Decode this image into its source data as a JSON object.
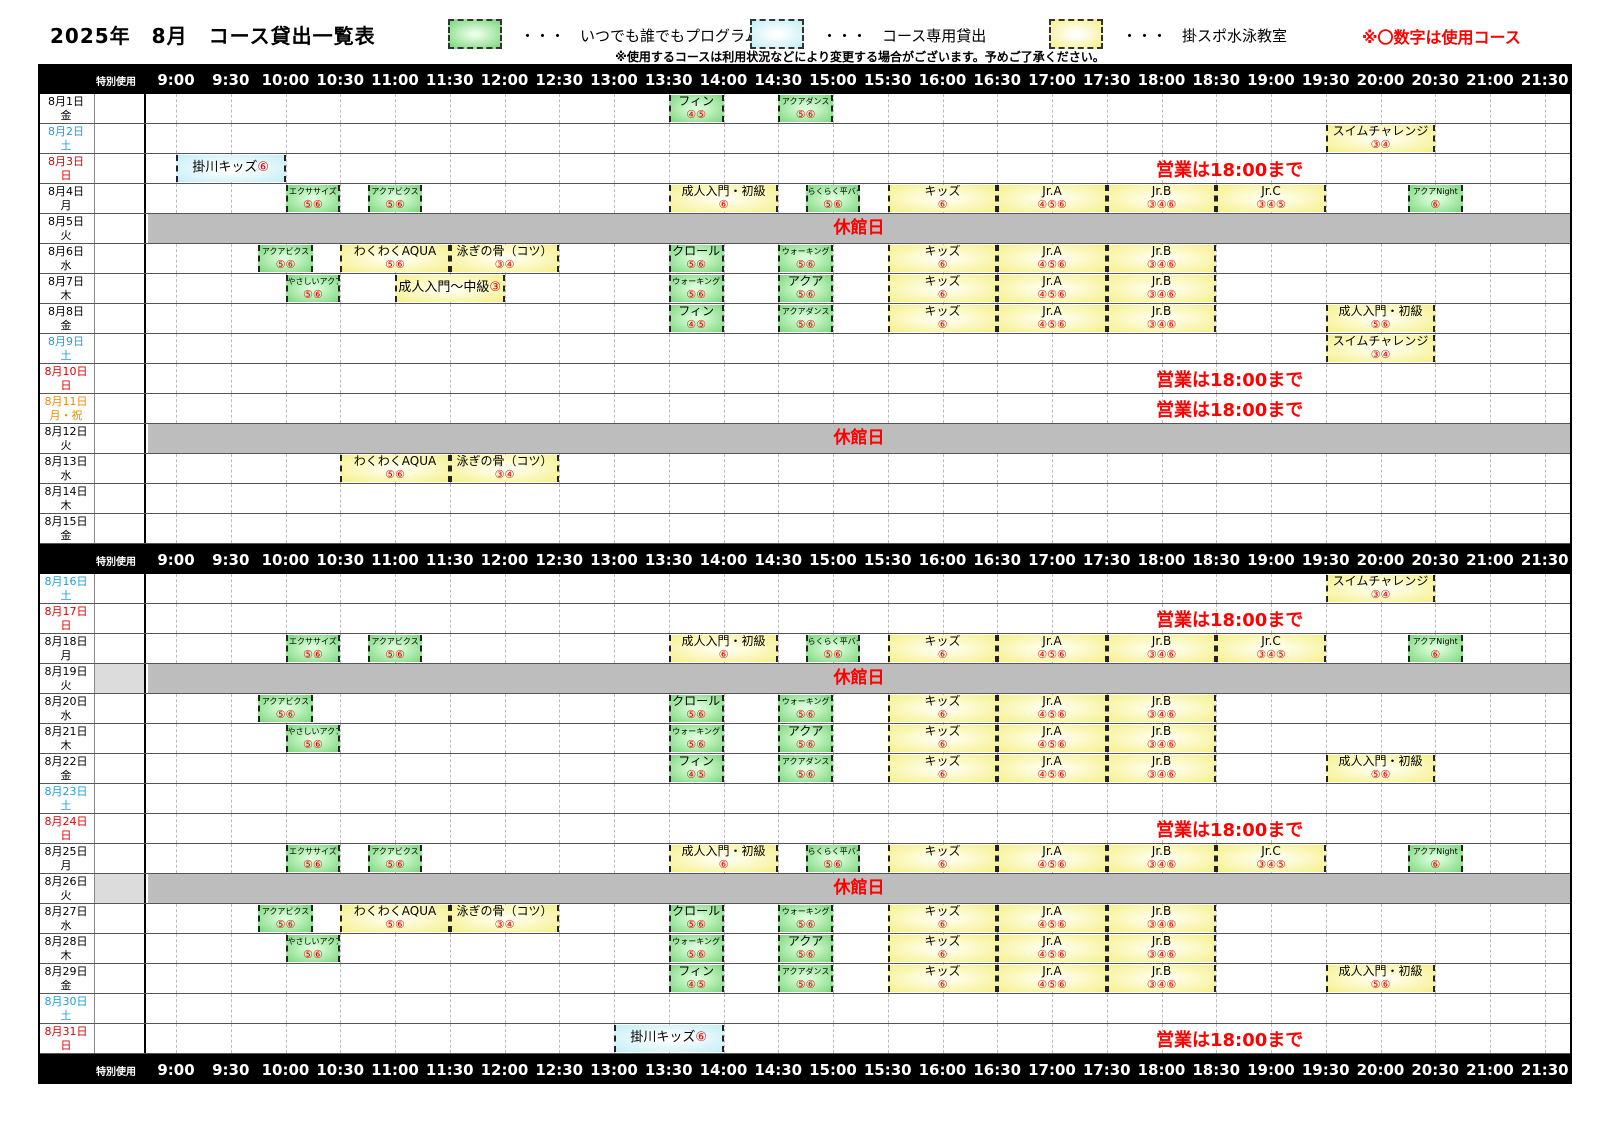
{
  "header": {
    "title": "2025年　8月　コース貸出一覧表",
    "legend": [
      {
        "type": "green",
        "text": "・・・　いつでも誰でもプログラム"
      },
      {
        "type": "blue",
        "text": "・・・　コース専用貸出"
      },
      {
        "type": "yellow",
        "text": "・・・　掛スポ水泳教室"
      }
    ],
    "red_notice": "※〇数字は使用コース",
    "subnote": "※使用するコースは利用状況などにより変更する場合がございます。予めご了承ください。"
  },
  "time_header": {
    "special_label": "特別使用",
    "times": [
      "9:00",
      "9:30",
      "10:00",
      "10:30",
      "11:00",
      "11:30",
      "12:00",
      "12:30",
      "13:00",
      "13:30",
      "14:00",
      "14:30",
      "15:00",
      "15:30",
      "16:00",
      "16:30",
      "17:00",
      "17:30",
      "18:00",
      "18:30",
      "19:00",
      "19:30",
      "20:00",
      "20:30",
      "21:00",
      "21:30"
    ]
  },
  "labels": {
    "closed": "休館日",
    "until18": "営業は18:00まで"
  },
  "days": [
    {
      "d1": "8月1日",
      "d2": "金",
      "color": "#000000",
      "blocks": [
        {
          "s": "13:30",
          "e": "14:00",
          "t": "フィン",
          "c": "④⑤",
          "k": "green"
        },
        {
          "s": "14:30",
          "e": "15:00",
          "t": "アクアダンス",
          "c": "⑤⑥",
          "k": "green",
          "small": true
        }
      ]
    },
    {
      "d1": "8月2日",
      "d2": "土",
      "color": "#1ea0d8",
      "blocks": [
        {
          "s": "19:30",
          "e": "20:30",
          "t": "スイムチャレンジ",
          "c": "③④",
          "k": "yellow"
        }
      ]
    },
    {
      "d1": "8月3日",
      "d2": "日",
      "color": "#e00000",
      "until18": true,
      "blocks": [
        {
          "s": "9:00",
          "e": "10:00",
          "t": "掛川キッズ",
          "c": "⑥",
          "k": "blue",
          "single": true
        }
      ]
    },
    {
      "d1": "8月4日",
      "d2": "月",
      "color": "#000000",
      "blocks": [
        {
          "s": "10:00",
          "e": "10:30",
          "t": "エクササイズ",
          "c": "⑤⑥",
          "k": "green",
          "small": true
        },
        {
          "s": "10:45",
          "e": "11:15",
          "t": "アクアビクス",
          "c": "⑤⑥",
          "k": "green",
          "small": true
        },
        {
          "s": "13:30",
          "e": "14:30",
          "t": "成人入門・初級",
          "c": "⑥",
          "k": "yellow"
        },
        {
          "s": "14:45",
          "e": "15:15",
          "t": "らくらく平バタ",
          "c": "⑤⑥",
          "k": "green",
          "small": true
        },
        {
          "s": "15:30",
          "e": "16:30",
          "t": "キッズ",
          "c": "⑥",
          "k": "yellow"
        },
        {
          "s": "16:30",
          "e": "17:30",
          "t": "Jr.A",
          "c": "④⑤⑥",
          "k": "yellow"
        },
        {
          "s": "17:30",
          "e": "18:30",
          "t": "Jr.B",
          "c": "③④⑥",
          "k": "yellow"
        },
        {
          "s": "18:30",
          "e": "19:30",
          "t": "Jr.C",
          "c": "③④⑤",
          "k": "yellow"
        },
        {
          "s": "20:15",
          "e": "20:45",
          "t": "アクアNight",
          "c": "⑥",
          "k": "green",
          "small": true
        }
      ]
    },
    {
      "d1": "8月5日",
      "d2": "火",
      "color": "#000000",
      "closed": true,
      "blocks": []
    },
    {
      "d1": "8月6日",
      "d2": "水",
      "color": "#000000",
      "blocks": [
        {
          "s": "9:45",
          "e": "10:15",
          "t": "アクアビクス",
          "c": "⑤⑥",
          "k": "green",
          "small": true
        },
        {
          "s": "10:30",
          "e": "11:30",
          "t": "わくわくAQUA",
          "c": "⑤⑥",
          "k": "yellow"
        },
        {
          "s": "11:30",
          "e": "12:30",
          "t": "泳ぎの骨（コツ）",
          "c": "③④",
          "k": "yellow"
        },
        {
          "s": "13:30",
          "e": "14:00",
          "t": "クロール",
          "c": "⑤⑥",
          "k": "green"
        },
        {
          "s": "14:30",
          "e": "15:00",
          "t": "ウォーキング",
          "c": "⑤⑥",
          "k": "green",
          "small": true
        },
        {
          "s": "15:30",
          "e": "16:30",
          "t": "キッズ",
          "c": "⑥",
          "k": "yellow"
        },
        {
          "s": "16:30",
          "e": "17:30",
          "t": "Jr.A",
          "c": "④⑤⑥",
          "k": "yellow"
        },
        {
          "s": "17:30",
          "e": "18:30",
          "t": "Jr.B",
          "c": "③④⑥",
          "k": "yellow"
        }
      ]
    },
    {
      "d1": "8月7日",
      "d2": "木",
      "color": "#000000",
      "blocks": [
        {
          "s": "10:00",
          "e": "10:30",
          "t": "やさしいアクア",
          "c": "⑤⑥",
          "k": "green",
          "small": true
        },
        {
          "s": "11:00",
          "e": "12:00",
          "t": "成人入門～中級",
          "c": "③",
          "k": "yellow",
          "single": true
        },
        {
          "s": "13:30",
          "e": "14:00",
          "t": "ウォーキング",
          "c": "⑤⑥",
          "k": "green",
          "small": true
        },
        {
          "s": "14:30",
          "e": "15:00",
          "t": "アクア",
          "c": "⑤⑥",
          "k": "green"
        },
        {
          "s": "15:30",
          "e": "16:30",
          "t": "キッズ",
          "c": "⑥",
          "k": "yellow"
        },
        {
          "s": "16:30",
          "e": "17:30",
          "t": "Jr.A",
          "c": "④⑤⑥",
          "k": "yellow"
        },
        {
          "s": "17:30",
          "e": "18:30",
          "t": "Jr.B",
          "c": "③④⑥",
          "k": "yellow"
        }
      ]
    },
    {
      "d1": "8月8日",
      "d2": "金",
      "color": "#000000",
      "blocks": [
        {
          "s": "13:30",
          "e": "14:00",
          "t": "フィン",
          "c": "④⑤",
          "k": "green"
        },
        {
          "s": "14:30",
          "e": "15:00",
          "t": "アクアダンス",
          "c": "⑤⑥",
          "k": "green",
          "small": true
        },
        {
          "s": "15:30",
          "e": "16:30",
          "t": "キッズ",
          "c": "⑥",
          "k": "yellow"
        },
        {
          "s": "16:30",
          "e": "17:30",
          "t": "Jr.A",
          "c": "④⑤⑥",
          "k": "yellow"
        },
        {
          "s": "17:30",
          "e": "18:30",
          "t": "Jr.B",
          "c": "③④⑥",
          "k": "yellow"
        },
        {
          "s": "19:30",
          "e": "20:30",
          "t": "成人入門・初級",
          "c": "⑤⑥",
          "k": "yellow"
        }
      ]
    },
    {
      "d1": "8月9日",
      "d2": "土",
      "color": "#1ea0d8",
      "blocks": [
        {
          "s": "19:30",
          "e": "20:30",
          "t": "スイムチャレンジ",
          "c": "③④",
          "k": "yellow"
        }
      ]
    },
    {
      "d1": "8月10日",
      "d2": "日",
      "color": "#e00000",
      "until18": true,
      "blocks": []
    },
    {
      "d1": "8月11日",
      "d2": "月・祝",
      "color": "#f08a00",
      "until18": true,
      "blocks": []
    },
    {
      "d1": "8月12日",
      "d2": "火",
      "color": "#000000",
      "closed": true,
      "blocks": []
    },
    {
      "d1": "8月13日",
      "d2": "水",
      "color": "#000000",
      "blocks": [
        {
          "s": "10:30",
          "e": "11:30",
          "t": "わくわくAQUA",
          "c": "⑤⑥",
          "k": "yellow"
        },
        {
          "s": "11:30",
          "e": "12:30",
          "t": "泳ぎの骨（コツ）",
          "c": "③④",
          "k": "yellow"
        }
      ]
    },
    {
      "d1": "8月14日",
      "d2": "木",
      "color": "#000000",
      "blocks": []
    },
    {
      "d1": "8月15日",
      "d2": "金",
      "color": "#000000",
      "blocks": []
    },
    {
      "header": true
    },
    {
      "d1": "8月16日",
      "d2": "土",
      "color": "#1ea0d8",
      "blocks": [
        {
          "s": "19:30",
          "e": "20:30",
          "t": "スイムチャレンジ",
          "c": "③④",
          "k": "yellow"
        }
      ]
    },
    {
      "d1": "8月17日",
      "d2": "日",
      "color": "#e00000",
      "until18": true,
      "blocks": []
    },
    {
      "d1": "8月18日",
      "d2": "月",
      "color": "#000000",
      "blocks": [
        {
          "s": "10:00",
          "e": "10:30",
          "t": "エクササイズ",
          "c": "⑤⑥",
          "k": "green",
          "small": true
        },
        {
          "s": "10:45",
          "e": "11:15",
          "t": "アクアビクス",
          "c": "⑤⑥",
          "k": "green",
          "small": true
        },
        {
          "s": "13:30",
          "e": "14:30",
          "t": "成人入門・初級",
          "c": "⑥",
          "k": "yellow"
        },
        {
          "s": "14:45",
          "e": "15:15",
          "t": "らくらく平バタ",
          "c": "⑤⑥",
          "k": "green",
          "small": true
        },
        {
          "s": "15:30",
          "e": "16:30",
          "t": "キッズ",
          "c": "⑥",
          "k": "yellow"
        },
        {
          "s": "16:30",
          "e": "17:30",
          "t": "Jr.A",
          "c": "④⑤⑥",
          "k": "yellow"
        },
        {
          "s": "17:30",
          "e": "18:30",
          "t": "Jr.B",
          "c": "③④⑥",
          "k": "yellow"
        },
        {
          "s": "18:30",
          "e": "19:30",
          "t": "Jr.C",
          "c": "③④⑤",
          "k": "yellow"
        },
        {
          "s": "20:15",
          "e": "20:45",
          "t": "アクアNight",
          "c": "⑥",
          "k": "green",
          "small": true
        }
      ]
    },
    {
      "d1": "8月19日",
      "d2": "火",
      "color": "#000000",
      "closed": true,
      "greysp": true,
      "blocks": []
    },
    {
      "d1": "8月20日",
      "d2": "水",
      "color": "#000000",
      "blocks": [
        {
          "s": "9:45",
          "e": "10:15",
          "t": "アクアビクス",
          "c": "⑤⑥",
          "k": "green",
          "small": true
        },
        {
          "s": "13:30",
          "e": "14:00",
          "t": "クロール",
          "c": "⑤⑥",
          "k": "green"
        },
        {
          "s": "14:30",
          "e": "15:00",
          "t": "ウォーキング",
          "c": "⑤⑥",
          "k": "green",
          "small": true
        },
        {
          "s": "15:30",
          "e": "16:30",
          "t": "キッズ",
          "c": "⑥",
          "k": "yellow"
        },
        {
          "s": "16:30",
          "e": "17:30",
          "t": "Jr.A",
          "c": "④⑤⑥",
          "k": "yellow"
        },
        {
          "s": "17:30",
          "e": "18:30",
          "t": "Jr.B",
          "c": "③④⑥",
          "k": "yellow"
        }
      ]
    },
    {
      "d1": "8月21日",
      "d2": "木",
      "color": "#000000",
      "blocks": [
        {
          "s": "10:00",
          "e": "10:30",
          "t": "やさしいアクア",
          "c": "⑤⑥",
          "k": "green",
          "small": true
        },
        {
          "s": "13:30",
          "e": "14:00",
          "t": "ウォーキング",
          "c": "⑤⑥",
          "k": "green",
          "small": true
        },
        {
          "s": "14:30",
          "e": "15:00",
          "t": "アクア",
          "c": "⑤⑥",
          "k": "green"
        },
        {
          "s": "15:30",
          "e": "16:30",
          "t": "キッズ",
          "c": "⑥",
          "k": "yellow"
        },
        {
          "s": "16:30",
          "e": "17:30",
          "t": "Jr.A",
          "c": "④⑤⑥",
          "k": "yellow"
        },
        {
          "s": "17:30",
          "e": "18:30",
          "t": "Jr.B",
          "c": "③④⑥",
          "k": "yellow"
        }
      ]
    },
    {
      "d1": "8月22日",
      "d2": "金",
      "color": "#000000",
      "blocks": [
        {
          "s": "13:30",
          "e": "14:00",
          "t": "フィン",
          "c": "④⑤",
          "k": "green"
        },
        {
          "s": "14:30",
          "e": "15:00",
          "t": "アクアダンス",
          "c": "⑤⑥",
          "k": "green",
          "small": true
        },
        {
          "s": "15:30",
          "e": "16:30",
          "t": "キッズ",
          "c": "⑥",
          "k": "yellow"
        },
        {
          "s": "16:30",
          "e": "17:30",
          "t": "Jr.A",
          "c": "④⑤⑥",
          "k": "yellow"
        },
        {
          "s": "17:30",
          "e": "18:30",
          "t": "Jr.B",
          "c": "③④⑥",
          "k": "yellow"
        },
        {
          "s": "19:30",
          "e": "20:30",
          "t": "成人入門・初級",
          "c": "⑤⑥",
          "k": "yellow"
        }
      ]
    },
    {
      "d1": "8月23日",
      "d2": "土",
      "color": "#1ea0d8",
      "blocks": []
    },
    {
      "d1": "8月24日",
      "d2": "日",
      "color": "#e00000",
      "until18": true,
      "blocks": []
    },
    {
      "d1": "8月25日",
      "d2": "月",
      "color": "#000000",
      "blocks": [
        {
          "s": "10:00",
          "e": "10:30",
          "t": "エクササイズ",
          "c": "⑤⑥",
          "k": "green",
          "small": true
        },
        {
          "s": "10:45",
          "e": "11:15",
          "t": "アクアビクス",
          "c": "⑤⑥",
          "k": "green",
          "small": true
        },
        {
          "s": "13:30",
          "e": "14:30",
          "t": "成人入門・初級",
          "c": "⑥",
          "k": "yellow"
        },
        {
          "s": "14:45",
          "e": "15:15",
          "t": "らくらく平バタ",
          "c": "⑤⑥",
          "k": "green",
          "small": true
        },
        {
          "s": "15:30",
          "e": "16:30",
          "t": "キッズ",
          "c": "⑥",
          "k": "yellow"
        },
        {
          "s": "16:30",
          "e": "17:30",
          "t": "Jr.A",
          "c": "④⑤⑥",
          "k": "yellow"
        },
        {
          "s": "17:30",
          "e": "18:30",
          "t": "Jr.B",
          "c": "③④⑥",
          "k": "yellow"
        },
        {
          "s": "18:30",
          "e": "19:30",
          "t": "Jr.C",
          "c": "③④⑤",
          "k": "yellow"
        },
        {
          "s": "20:15",
          "e": "20:45",
          "t": "アクアNight",
          "c": "⑥",
          "k": "green",
          "small": true
        }
      ]
    },
    {
      "d1": "8月26日",
      "d2": "火",
      "color": "#000000",
      "closed": true,
      "greysp": true,
      "blocks": []
    },
    {
      "d1": "8月27日",
      "d2": "水",
      "color": "#000000",
      "blocks": [
        {
          "s": "9:45",
          "e": "10:15",
          "t": "アクアビクス",
          "c": "⑤⑥",
          "k": "green",
          "small": true
        },
        {
          "s": "10:30",
          "e": "11:30",
          "t": "わくわくAQUA",
          "c": "⑤⑥",
          "k": "yellow"
        },
        {
          "s": "11:30",
          "e": "12:30",
          "t": "泳ぎの骨（コツ）",
          "c": "③④",
          "k": "yellow"
        },
        {
          "s": "13:30",
          "e": "14:00",
          "t": "クロール",
          "c": "⑤⑥",
          "k": "green"
        },
        {
          "s": "14:30",
          "e": "15:00",
          "t": "ウォーキング",
          "c": "⑤⑥",
          "k": "green",
          "small": true
        },
        {
          "s": "15:30",
          "e": "16:30",
          "t": "キッズ",
          "c": "⑥",
          "k": "yellow"
        },
        {
          "s": "16:30",
          "e": "17:30",
          "t": "Jr.A",
          "c": "④⑤⑥",
          "k": "yellow"
        },
        {
          "s": "17:30",
          "e": "18:30",
          "t": "Jr.B",
          "c": "③④⑥",
          "k": "yellow"
        }
      ]
    },
    {
      "d1": "8月28日",
      "d2": "木",
      "color": "#000000",
      "blocks": [
        {
          "s": "10:00",
          "e": "10:30",
          "t": "やさしいアクア",
          "c": "⑤⑥",
          "k": "green",
          "small": true
        },
        {
          "s": "13:30",
          "e": "14:00",
          "t": "ウォーキング",
          "c": "⑤⑥",
          "k": "green",
          "small": true
        },
        {
          "s": "14:30",
          "e": "15:00",
          "t": "アクア",
          "c": "⑤⑥",
          "k": "green"
        },
        {
          "s": "15:30",
          "e": "16:30",
          "t": "キッズ",
          "c": "⑥",
          "k": "yellow"
        },
        {
          "s": "16:30",
          "e": "17:30",
          "t": "Jr.A",
          "c": "④⑤⑥",
          "k": "yellow"
        },
        {
          "s": "17:30",
          "e": "18:30",
          "t": "Jr.B",
          "c": "③④⑥",
          "k": "yellow"
        }
      ]
    },
    {
      "d1": "8月29日",
      "d2": "金",
      "color": "#000000",
      "blocks": [
        {
          "s": "13:30",
          "e": "14:00",
          "t": "フィン",
          "c": "④⑤",
          "k": "green"
        },
        {
          "s": "14:30",
          "e": "15:00",
          "t": "アクアダンス",
          "c": "⑤⑥",
          "k": "green",
          "small": true
        },
        {
          "s": "15:30",
          "e": "16:30",
          "t": "キッズ",
          "c": "⑥",
          "k": "yellow"
        },
        {
          "s": "16:30",
          "e": "17:30",
          "t": "Jr.A",
          "c": "④⑤⑥",
          "k": "yellow"
        },
        {
          "s": "17:30",
          "e": "18:30",
          "t": "Jr.B",
          "c": "③④⑥",
          "k": "yellow"
        },
        {
          "s": "19:30",
          "e": "20:30",
          "t": "成人入門・初級",
          "c": "⑤⑥",
          "k": "yellow"
        }
      ]
    },
    {
      "d1": "8月30日",
      "d2": "土",
      "color": "#1ea0d8",
      "blocks": []
    },
    {
      "d1": "8月31日",
      "d2": "日",
      "color": "#e00000",
      "until18": true,
      "blocks": [
        {
          "s": "13:00",
          "e": "14:00",
          "t": "掛川キッズ",
          "c": "⑥",
          "k": "blue",
          "single": true
        }
      ]
    },
    {
      "header": true
    }
  ]
}
